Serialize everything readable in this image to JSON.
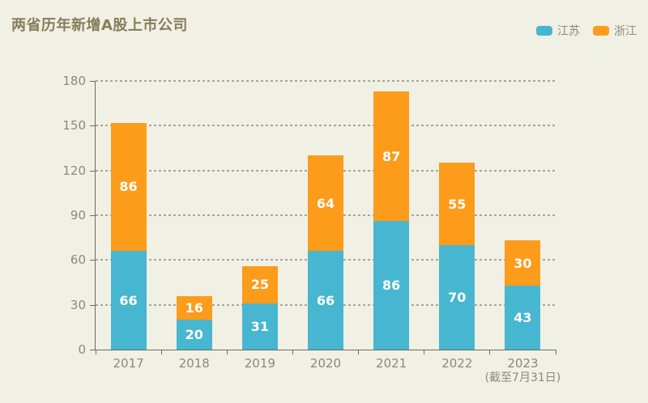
{
  "title": "两省历年新增A股上市公司",
  "colors": {
    "background": "#f1f0e4",
    "title_text": "#867d5b",
    "axis_text": "#8b897b",
    "axis_line": "#6f6d5c",
    "grid_dots": "#a8a695",
    "value_label": "#ffffff",
    "jiangsu_blue": "#47b6d1",
    "zhejiang_orange": "#fc9c1a"
  },
  "chart_data": {
    "type": "bar",
    "stacked": true,
    "title": "两省历年新增A股上市公司",
    "categories": [
      "2017",
      "2018",
      "2019",
      "2020",
      "2021",
      "2022",
      "2023"
    ],
    "x_sublabels": [
      "",
      "",
      "",
      "",
      "",
      "",
      "(截至7月31日)"
    ],
    "series": [
      {
        "name": "江苏",
        "color": "#47b6d1",
        "values": [
          66,
          20,
          31,
          66,
          86,
          70,
          43
        ]
      },
      {
        "name": "浙江",
        "color": "#fc9c1a",
        "values": [
          86,
          16,
          25,
          64,
          87,
          55,
          30
        ]
      }
    ],
    "totals": [
      152,
      36,
      56,
      130,
      173,
      125,
      73
    ],
    "xlabel": "",
    "ylabel": "",
    "yticks": [
      0,
      30,
      60,
      90,
      120,
      150,
      180
    ],
    "ylim": [
      0,
      180
    ],
    "grid": "dotted horizontal",
    "legend_position": "top-right",
    "value_labels": "inside segments, white"
  }
}
